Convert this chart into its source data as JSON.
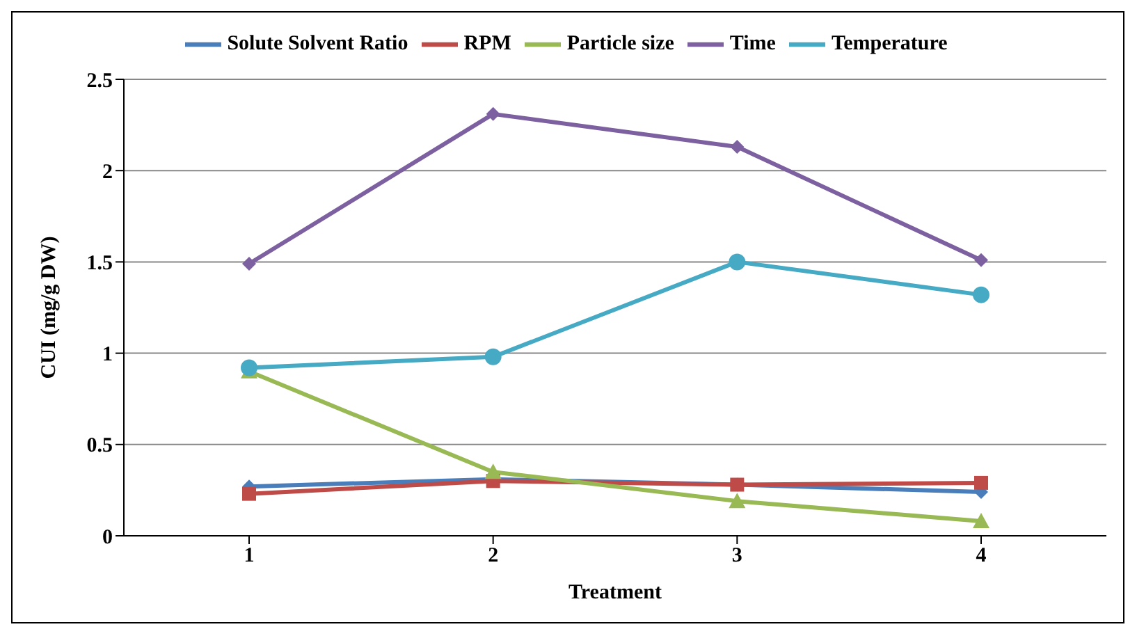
{
  "chart_data": {
    "type": "line",
    "xlabel": "Treatment",
    "ylabel": "CUI  (mg/g DW)",
    "categories": [
      "1",
      "2",
      "3",
      "4"
    ],
    "series": [
      {
        "name": "Solute Solvent Ratio",
        "color": "#4a7ebb",
        "marker": "diamond",
        "values": [
          0.27,
          0.31,
          0.28,
          0.24
        ]
      },
      {
        "name": "RPM",
        "color": "#be4b48",
        "marker": "square",
        "values": [
          0.23,
          0.3,
          0.28,
          0.29
        ]
      },
      {
        "name": "Particle size",
        "color": "#98b954",
        "marker": "triangle",
        "values": [
          0.9,
          0.35,
          0.19,
          0.08
        ]
      },
      {
        "name": "Time",
        "color": "#7d60a0",
        "marker": "diamond",
        "values": [
          1.49,
          2.31,
          2.13,
          1.51
        ]
      },
      {
        "name": "Temperature",
        "color": "#46aac5",
        "marker": "circle",
        "values": [
          0.92,
          0.98,
          1.5,
          1.32
        ]
      }
    ],
    "ylim": [
      0,
      2.5
    ],
    "yticks": [
      0,
      0.5,
      1,
      1.5,
      2,
      2.5
    ],
    "grid": "y",
    "legend": "top"
  }
}
